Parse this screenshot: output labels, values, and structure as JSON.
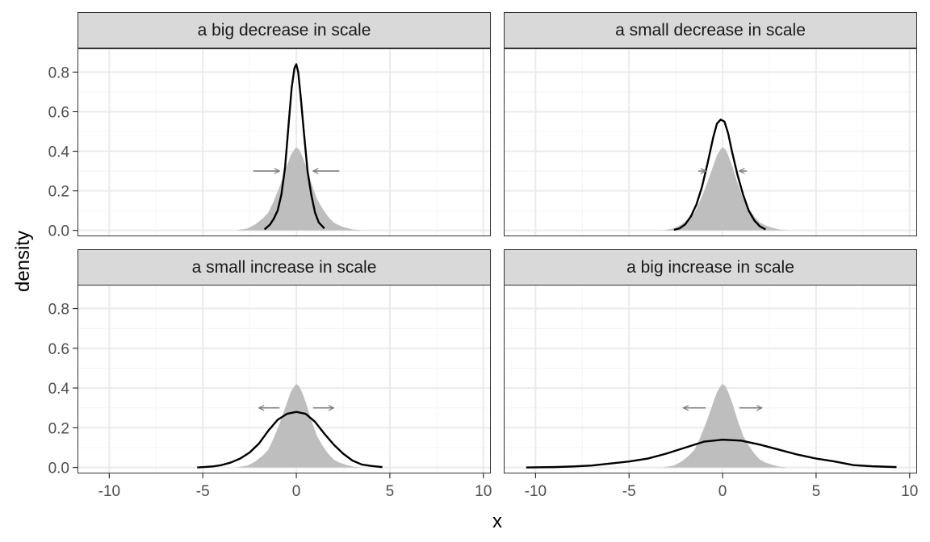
{
  "chart_data": {
    "type": "area",
    "xlabel": "x",
    "ylabel": "density",
    "xlim": [
      -11.7,
      10.4
    ],
    "ylim": [
      -0.03,
      0.92
    ],
    "x_ticks": [
      -10,
      -5,
      0,
      5,
      10
    ],
    "x_tick_labels": [
      "-10",
      "-5",
      "0",
      "5",
      "10"
    ],
    "y_ticks": [
      0.0,
      0.2,
      0.4,
      0.6,
      0.8
    ],
    "y_tick_labels": [
      "0.0",
      "0.2",
      "0.4",
      "0.6",
      "0.8"
    ],
    "grid": true,
    "colors": {
      "reference_fill": "#bebebe",
      "line": "#000000",
      "arrow": "#7f7f7f",
      "strip": "#d9d9d9",
      "grid_major": "#ebebeb",
      "grid_minor": "#f4f4f4"
    },
    "reference_density": {
      "x": [
        -3.2,
        -2.6,
        -2.2,
        -1.8,
        -1.5,
        -1.2,
        -0.9,
        -0.6,
        -0.3,
        -0.1,
        0.0,
        0.15,
        0.3,
        0.5,
        0.8,
        1.1,
        1.4,
        1.7,
        2.0,
        2.3,
        2.6,
        3.0,
        3.5
      ],
      "y": [
        0.0,
        0.01,
        0.03,
        0.06,
        0.09,
        0.15,
        0.22,
        0.3,
        0.38,
        0.41,
        0.42,
        0.41,
        0.38,
        0.33,
        0.24,
        0.16,
        0.11,
        0.07,
        0.04,
        0.025,
        0.015,
        0.005,
        0.0
      ]
    },
    "panels": [
      {
        "label": "a big decrease in scale",
        "arrows": [
          {
            "from": -2.3,
            "to": -0.9,
            "y": 0.3
          },
          {
            "from": 2.3,
            "to": 0.9,
            "y": 0.3
          }
        ],
        "line": {
          "x": [
            -1.7,
            -1.4,
            -1.2,
            -1.0,
            -0.8,
            -0.6,
            -0.4,
            -0.25,
            -0.1,
            0.0,
            0.1,
            0.25,
            0.4,
            0.6,
            0.8,
            1.0,
            1.2,
            1.5
          ],
          "y": [
            0.005,
            0.03,
            0.06,
            0.1,
            0.18,
            0.32,
            0.55,
            0.72,
            0.82,
            0.84,
            0.8,
            0.66,
            0.5,
            0.3,
            0.18,
            0.09,
            0.04,
            0.01
          ]
        }
      },
      {
        "label": "a small decrease in scale",
        "arrows": [
          {
            "from": -1.3,
            "to": -0.9,
            "y": 0.3
          },
          {
            "from": 1.3,
            "to": 0.9,
            "y": 0.3
          }
        ],
        "line": {
          "x": [
            -2.6,
            -2.3,
            -2.0,
            -1.7,
            -1.4,
            -1.1,
            -0.8,
            -0.5,
            -0.3,
            -0.1,
            0.1,
            0.3,
            0.5,
            0.8,
            1.1,
            1.4,
            1.7,
            2.0,
            2.3
          ],
          "y": [
            0.003,
            0.01,
            0.03,
            0.07,
            0.13,
            0.22,
            0.34,
            0.47,
            0.54,
            0.56,
            0.55,
            0.49,
            0.4,
            0.28,
            0.18,
            0.1,
            0.05,
            0.02,
            0.005
          ]
        }
      },
      {
        "label": "a small increase in scale",
        "arrows": [
          {
            "from": -0.9,
            "to": -2.0,
            "y": 0.3
          },
          {
            "from": 0.9,
            "to": 2.0,
            "y": 0.3
          }
        ],
        "line": {
          "x": [
            -5.3,
            -4.5,
            -4.0,
            -3.5,
            -3.0,
            -2.5,
            -2.0,
            -1.5,
            -1.0,
            -0.5,
            0.0,
            0.5,
            1.0,
            1.5,
            2.0,
            2.5,
            3.0,
            3.5,
            4.0,
            4.6
          ],
          "y": [
            0.0,
            0.005,
            0.012,
            0.025,
            0.045,
            0.075,
            0.12,
            0.185,
            0.24,
            0.27,
            0.28,
            0.27,
            0.23,
            0.17,
            0.115,
            0.07,
            0.035,
            0.015,
            0.008,
            0.002
          ]
        }
      },
      {
        "label": "a big increase in scale",
        "arrows": [
          {
            "from": -0.9,
            "to": -2.1,
            "y": 0.3
          },
          {
            "from": 0.9,
            "to": 2.1,
            "y": 0.3
          }
        ],
        "line": {
          "x": [
            -10.5,
            -9.0,
            -8.0,
            -7.0,
            -6.0,
            -5.0,
            -4.0,
            -3.0,
            -2.0,
            -1.0,
            0.0,
            1.0,
            2.0,
            3.0,
            4.0,
            5.0,
            6.0,
            7.0,
            8.0,
            9.3
          ],
          "y": [
            0.0,
            0.002,
            0.005,
            0.01,
            0.02,
            0.03,
            0.045,
            0.07,
            0.1,
            0.13,
            0.14,
            0.135,
            0.115,
            0.09,
            0.065,
            0.045,
            0.03,
            0.012,
            0.006,
            0.002
          ]
        }
      }
    ]
  }
}
